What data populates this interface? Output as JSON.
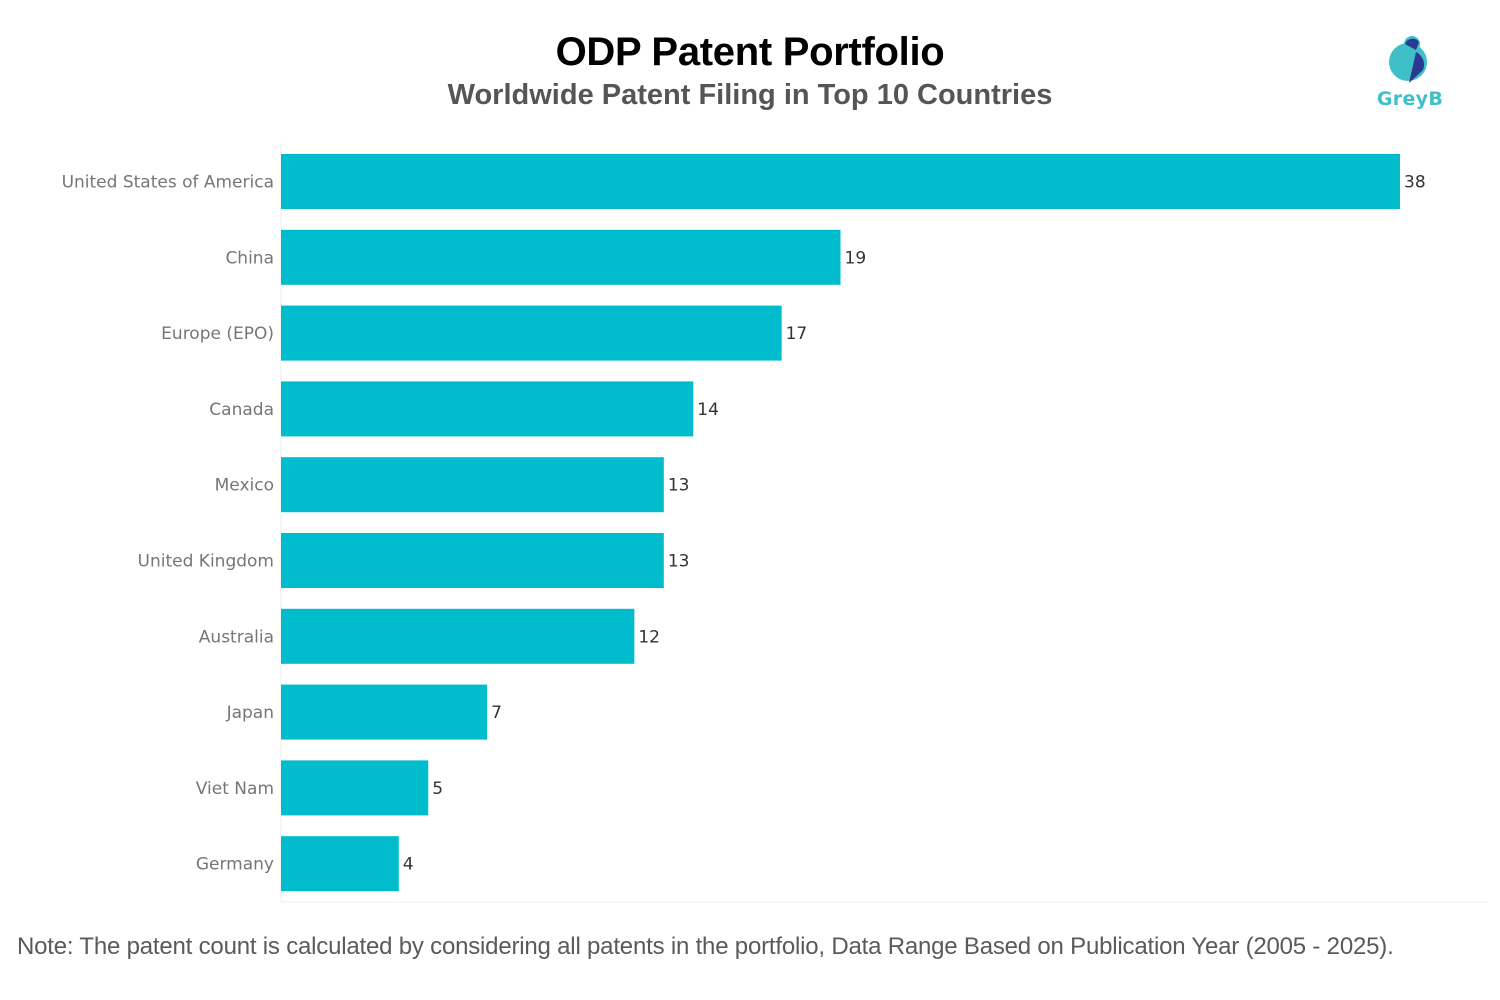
{
  "header": {
    "title": "ODP Patent Portfolio",
    "subtitle": "Worldwide Patent Filing in Top 10 Countries"
  },
  "logo": {
    "icon": "greyb-logo-icon",
    "text": "GreyB",
    "colors": {
      "light": "#3fc0c9",
      "dark": "#2a3a8f"
    }
  },
  "chart_data": {
    "type": "bar",
    "orientation": "horizontal",
    "title": "ODP Patent Portfolio",
    "subtitle": "Worldwide Patent Filing in Top 10 Countries",
    "xlabel": "",
    "ylabel": "",
    "categories": [
      "United States of America",
      "China",
      "Europe (EPO)",
      "Canada",
      "Mexico",
      "United Kingdom",
      "Australia",
      "Japan",
      "Viet Nam",
      "Germany"
    ],
    "values": [
      38,
      19,
      17,
      14,
      13,
      13,
      12,
      7,
      5,
      4
    ],
    "xlim": [
      0,
      41
    ],
    "grid": false,
    "legend": "none",
    "data_labels": true,
    "bar_color": "#00bccd"
  },
  "footer": {
    "note": "Note: The patent count is calculated by considering all patents in the portfolio, Data Range Based on Publication Year (2005 - 2025)."
  }
}
